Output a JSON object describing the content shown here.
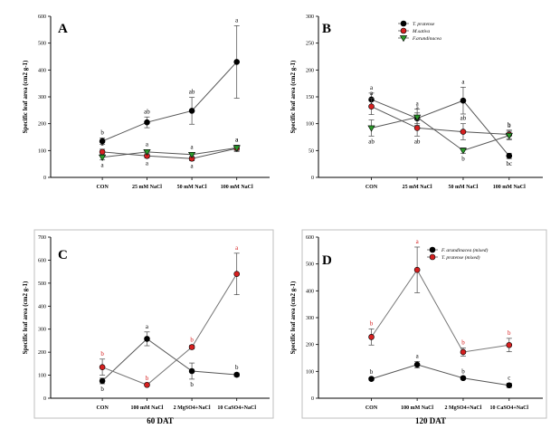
{
  "chart_data": [
    {
      "panel": "A",
      "type": "line",
      "ylabel": "Specific leaf area (cm2 g-1)",
      "ylim": [
        0,
        600
      ],
      "yticks": [
        "0",
        "100",
        "200",
        "300",
        "400",
        "500",
        "600"
      ],
      "categories": [
        "CON",
        "25 mM NaCl",
        "50 mM NaCl",
        "100 mM NaCl"
      ],
      "series": [
        {
          "name": "T. pratense",
          "color": "#000000",
          "marker": "circle",
          "values": [
            135,
            205,
            248,
            430
          ],
          "errors": [
            12,
            20,
            50,
            135
          ],
          "letters": [
            "b",
            "ab",
            "ab",
            "a"
          ],
          "letter_pos": [
            "above",
            "above",
            "above",
            "above"
          ]
        },
        {
          "name": "M. sativa",
          "color": "#d62020",
          "marker": "circle",
          "values": [
            95,
            80,
            70,
            108
          ],
          "errors": [
            10,
            8,
            8,
            12
          ],
          "letters": [
            "a",
            "a",
            "a",
            "a"
          ],
          "letter_pos": [
            "above",
            "below",
            "below",
            "above"
          ]
        },
        {
          "name": "F. arundinacea",
          "color": "#2a9a2a",
          "marker": "triangle-down",
          "values": [
            75,
            95,
            85,
            110
          ],
          "errors": [
            10,
            8,
            8,
            10
          ],
          "letters": [
            "a",
            "a",
            "a",
            "a"
          ],
          "letter_pos": [
            "below",
            "above",
            "above",
            "above"
          ]
        }
      ]
    },
    {
      "panel": "B",
      "type": "line",
      "ylabel": "Specific leaf area (cm2 g-1)",
      "ylim": [
        0,
        300
      ],
      "yticks": [
        "0",
        "50",
        "100",
        "150",
        "200",
        "250",
        "300"
      ],
      "categories": [
        "CON",
        "25 mM NaCl",
        "50 mM NaCl",
        "100 mM NaCl"
      ],
      "legend": [
        "T. pratense",
        "M.sativa",
        "F.arundinacea"
      ],
      "series": [
        {
          "name": "T. pratense",
          "color": "#000000",
          "marker": "circle",
          "values": [
            145,
            110,
            143,
            40
          ],
          "errors": [
            12,
            10,
            25,
            5
          ],
          "letters": [
            "a",
            "a",
            "a",
            "bc"
          ],
          "letter_pos": [
            "above",
            "above",
            "above",
            "below"
          ]
        },
        {
          "name": "M.sativa",
          "color": "#d62020",
          "marker": "circle",
          "values": [
            132,
            92,
            85,
            80
          ],
          "errors": [
            15,
            15,
            15,
            8
          ],
          "letters": [
            "a",
            "ab",
            "ab",
            "b"
          ],
          "letter_pos": [
            "above",
            "below",
            "above",
            "above"
          ]
        },
        {
          "name": "F.arundinacea",
          "color": "#2a9a2a",
          "marker": "triangle-down",
          "values": [
            92,
            112,
            50,
            78
          ],
          "errors": [
            15,
            15,
            5,
            8
          ],
          "letters": [
            "ab",
            "a",
            "b",
            "b"
          ],
          "letter_pos": [
            "below",
            "above",
            "below",
            "above"
          ]
        }
      ]
    },
    {
      "panel": "C",
      "type": "line",
      "xlabel": "60 DAT",
      "ylabel": "Specific leaf area (cm2 g-1)",
      "ylim": [
        0,
        700
      ],
      "yticks": [
        "0",
        "100",
        "200",
        "300",
        "400",
        "500",
        "600",
        "700"
      ],
      "categories": [
        "CON",
        "100 mM NaCl",
        "2 MgSO4+NaCl",
        "10 CaSO4+NaCl"
      ],
      "series": [
        {
          "name": "F. arundinacea (mixed)",
          "color": "#000000",
          "marker": "circle",
          "values": [
            75,
            258,
            118,
            102
          ],
          "errors": [
            12,
            30,
            35,
            8
          ],
          "letters": [
            "b",
            "a",
            "b",
            "b"
          ],
          "letter_pos": [
            "below",
            "above",
            "below",
            "above"
          ]
        },
        {
          "name": "T. pratense (mixed)",
          "color": "#d62020",
          "marker": "circle",
          "values": [
            135,
            58,
            222,
            540
          ],
          "errors": [
            35,
            5,
            8,
            90
          ],
          "letters": [
            "b",
            "b",
            "b",
            "a"
          ],
          "letter_pos": [
            "above",
            "above",
            "above",
            "above"
          ]
        }
      ]
    },
    {
      "panel": "D",
      "type": "line",
      "xlabel": "120 DAT",
      "ylabel": "Specific leaf area (cm2 g-1)",
      "ylim": [
        0,
        600
      ],
      "yticks": [
        "0",
        "100",
        "200",
        "300",
        "400",
        "500",
        "600"
      ],
      "categories": [
        "CON",
        "100 mM NaCl",
        "2 MgSO4+NaCl",
        "10 CaSO4+NaCl"
      ],
      "legend": [
        "F. arundinacea (mixed)",
        "T. pratense (mixed)"
      ],
      "series": [
        {
          "name": "F. arundinacea (mixed)",
          "color": "#000000",
          "marker": "circle",
          "values": [
            72,
            125,
            75,
            48
          ],
          "errors": [
            5,
            12,
            5,
            8
          ],
          "letters": [
            "b",
            "a",
            "b",
            "c"
          ],
          "letter_pos": [
            "above",
            "above",
            "above",
            "above"
          ]
        },
        {
          "name": "T. pratense (mixed)",
          "color": "#d62020",
          "marker": "circle",
          "values": [
            228,
            478,
            172,
            198
          ],
          "errors": [
            30,
            85,
            15,
            25
          ],
          "letters": [
            "b",
            "a",
            "b",
            "b"
          ],
          "letter_pos": [
            "above",
            "above",
            "above",
            "above"
          ]
        }
      ]
    }
  ]
}
